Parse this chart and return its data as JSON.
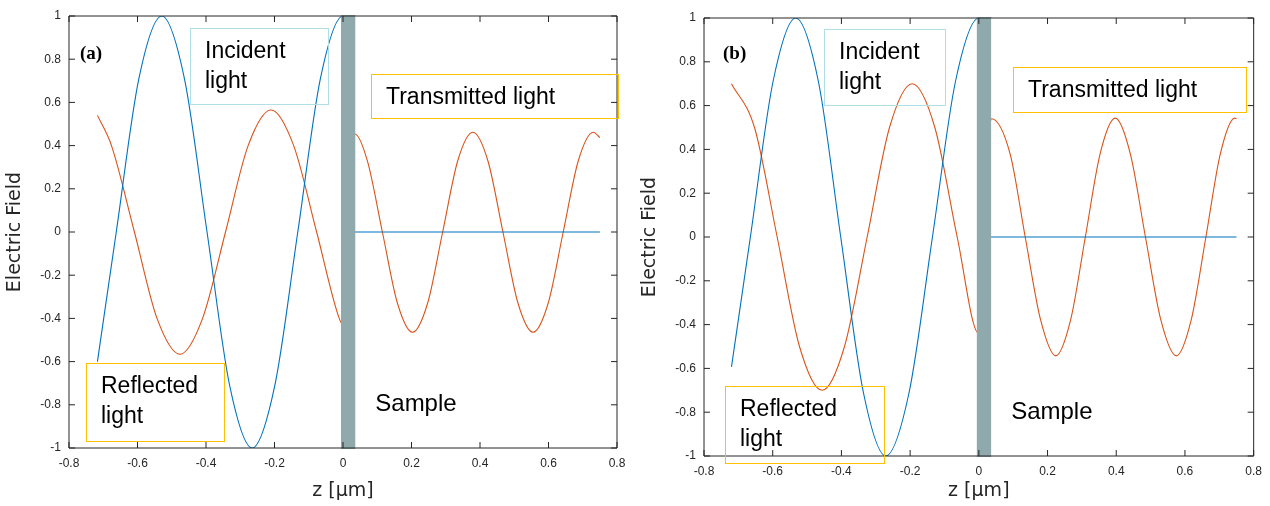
{
  "chart_data": [
    {
      "type": "line",
      "xlabel": "z [μm]",
      "ylabel": "Electric Field",
      "xlim": [
        -0.8,
        0.8
      ],
      "xticks": [
        -0.8,
        -0.6,
        -0.4,
        -0.2,
        0,
        0.2,
        0.4,
        0.6,
        0.8
      ],
      "ylim": [
        -1,
        1
      ],
      "yticks": [
        -1,
        -0.8,
        -0.6,
        -0.4,
        -0.2,
        0,
        0.2,
        0.4,
        0.6,
        0.8,
        1
      ],
      "grid": false,
      "legend": false,
      "marker": "none",
      "line_style": "solid",
      "annotations": [
        "(a)",
        "Incident light",
        "Transmitted light",
        "Reflected light"
      ],
      "bands": [
        {
          "axis": "x",
          "from": 0,
          "to": 0.03,
          "label": "Sample",
          "color": "#8fa9ad"
        }
      ],
      "series": [
        {
          "color": "#0072bd",
          "x": [
            -0.717,
            -0.662,
            -0.596,
            -0.529,
            -0.463,
            -0.397,
            -0.331,
            -0.265,
            -0.199,
            -0.132,
            -0.066,
            0,
            0.035,
            0.75
          ],
          "values": [
            -0.6,
            0,
            0.71,
            1,
            0.71,
            0,
            -0.71,
            -1,
            -0.71,
            0,
            0.71,
            1,
            0,
            0
          ]
        },
        {
          "color": "#d95319",
          "x": [
            -0.717,
            -0.676,
            -0.609,
            -0.543,
            -0.476,
            -0.41,
            -0.343,
            -0.277,
            -0.21,
            -0.144,
            -0.077,
            -0.011,
            0,
            0.035,
            0.071,
            0.115,
            0.159,
            0.203,
            0.247,
            0.291,
            0.335,
            0.379,
            0.423,
            0.467,
            0.511,
            0.555,
            0.599,
            0.643,
            0.687,
            0.731,
            0.75
          ],
          "values": [
            0.54,
            0.4,
            0,
            -0.4,
            -0.566,
            -0.4,
            0,
            0.4,
            0.565,
            0.4,
            0,
            -0.4,
            -0.43,
            0.454,
            0.33,
            0,
            -0.33,
            -0.464,
            -0.33,
            0,
            0.33,
            0.462,
            0.33,
            0,
            -0.33,
            -0.464,
            -0.33,
            0,
            0.33,
            0.462,
            0.437
          ]
        }
      ]
    },
    {
      "type": "line",
      "xlabel": "z [μm]",
      "ylabel": "Electric Field",
      "xlim": [
        -0.8,
        0.8
      ],
      "xticks": [
        -0.8,
        -0.6,
        -0.4,
        -0.2,
        0,
        0.2,
        0.4,
        0.6,
        0.8
      ],
      "ylim": [
        -1,
        1
      ],
      "yticks": [
        -1,
        -0.8,
        -0.6,
        -0.4,
        -0.2,
        0,
        0.2,
        0.4,
        0.6,
        0.8,
        1
      ],
      "grid": false,
      "legend": false,
      "marker": "none",
      "line_style": "solid",
      "annotations": [
        "(b)",
        "Incident light",
        "Transmitted light",
        "Reflected light"
      ],
      "bands": [
        {
          "axis": "x",
          "from": 0,
          "to": 0.03,
          "label": "Sample",
          "color": "#8fa9ad"
        }
      ],
      "series": [
        {
          "color": "#0072bd",
          "x": [
            -0.72,
            -0.665,
            -0.599,
            -0.533,
            -0.467,
            -0.402,
            -0.336,
            -0.271,
            -0.203,
            -0.135,
            -0.068,
            0,
            0.035,
            0.75
          ],
          "values": [
            -0.593,
            0,
            0.71,
            1,
            0.71,
            0,
            -0.71,
            -1,
            -0.71,
            0,
            0.71,
            1,
            0,
            0
          ]
        },
        {
          "color": "#d95319",
          "x": [
            -0.72,
            -0.653,
            -0.587,
            -0.522,
            -0.456,
            -0.391,
            -0.325,
            -0.26,
            -0.194,
            -0.128,
            -0.063,
            0,
            0.037,
            0.091,
            0.135,
            0.18,
            0.224,
            0.267,
            0.31,
            0.353,
            0.397,
            0.441,
            0.485,
            0.53,
            0.575,
            0.618,
            0.661,
            0.703,
            0.745,
            0.75
          ],
          "values": [
            0.7,
            0.5,
            0,
            -0.5,
            -0.7,
            -0.5,
            0,
            0.5,
            0.7,
            0.5,
            0,
            -0.44,
            0.54,
            0.38,
            0,
            -0.38,
            -0.543,
            -0.38,
            0,
            0.38,
            0.543,
            0.38,
            0,
            -0.38,
            -0.543,
            -0.38,
            0,
            0.38,
            0.543,
            0.54
          ]
        }
      ]
    }
  ]
}
